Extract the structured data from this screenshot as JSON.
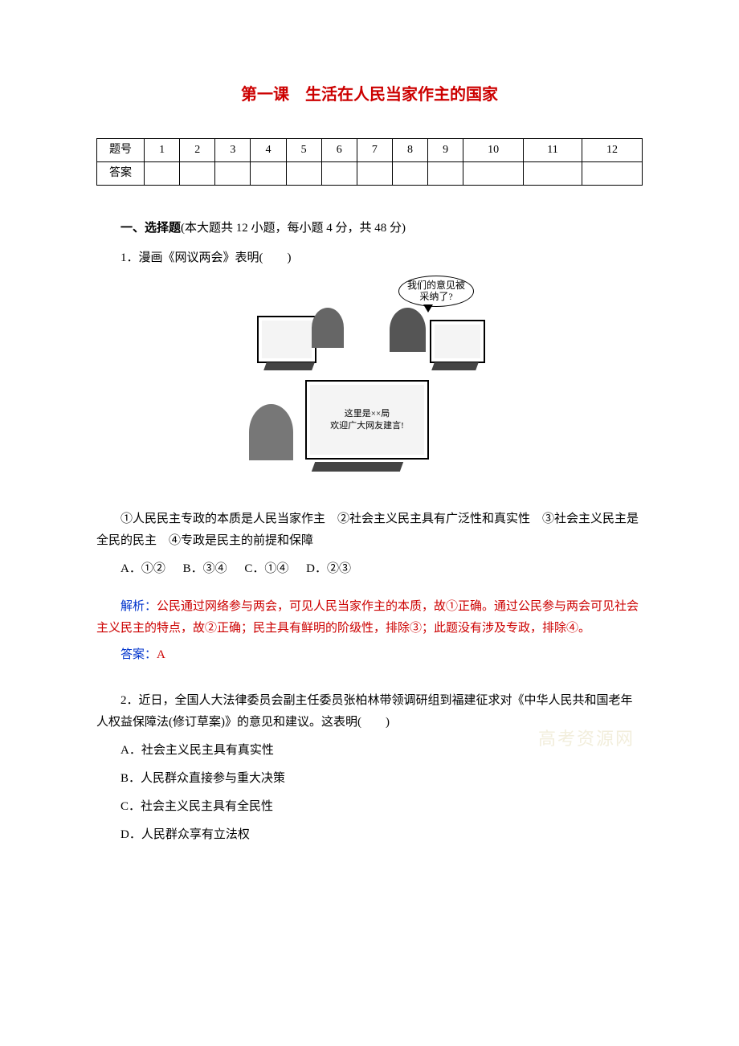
{
  "title": "第一课　生活在人民当家作主的国家",
  "grid": {
    "row_label": "题号",
    "answer_label": "答案",
    "cols": [
      "1",
      "2",
      "3",
      "4",
      "5",
      "6",
      "7",
      "8",
      "9",
      "10",
      "11",
      "12"
    ]
  },
  "section1": {
    "heading_prefix": "一、选择题",
    "heading_rest": "(本大题共 12 小题，每小题 4 分，共 48 分)"
  },
  "q1": {
    "stem": "1．漫画《网议两会》表明(　　)",
    "bubble": "我们的意见被\n采纳了?",
    "screen_text": "这里是××局\n欢迎广大网友建言!",
    "statements": "①人民民主专政的本质是人民当家作主　②社会主义民主具有广泛性和真实性　③社会主义民主是全民的民主　④专政是民主的前提和保障",
    "optA": "A．①②",
    "optB": "B．③④",
    "optC": "C．①④",
    "optD": "D．②③",
    "analysis_label": "解析：",
    "analysis_text": "公民通过网络参与两会，可见人民当家作主的本质，故①正确。通过公民参与两会可见社会主义民主的特点，故②正确；民主具有鲜明的阶级性，排除③；此题没有涉及专政，排除④。",
    "answer_label": "答案：",
    "answer_value": "A"
  },
  "q2": {
    "stem": "2．近日，全国人大法律委员会副主任委员张柏林带领调研组到福建征求对《中华人民共和国老年人权益保障法(修订草案)》的意见和建议。这表明(　　)",
    "optA": "A．社会主义民主具有真实性",
    "optB": "B．人民群众直接参与重大决策",
    "optC": "C．社会主义民主具有全民性",
    "optD": "D．人民群众享有立法权"
  },
  "watermark": "高考资源网",
  "colors": {
    "title": "#cc0000",
    "analysis_text": "#cc0000",
    "label": "#0033cc",
    "body": "#000000",
    "background": "#ffffff"
  }
}
